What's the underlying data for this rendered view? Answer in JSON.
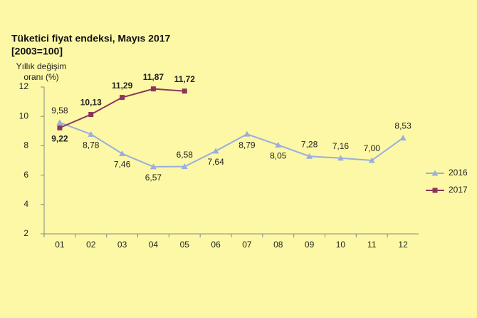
{
  "chart_data": {
    "type": "line",
    "title": "Tüketici fiyat endeksi, Mayıs 2017",
    "subtitle": "[2003=100]",
    "ylabel": "Yıllık değişim oranı (%)",
    "categories": [
      "01",
      "02",
      "03",
      "04",
      "05",
      "06",
      "07",
      "08",
      "09",
      "10",
      "11",
      "12"
    ],
    "series": [
      {
        "name": "2016",
        "color": "#9aaee0",
        "marker": "triangle",
        "values": [
          9.58,
          8.78,
          7.46,
          6.57,
          6.58,
          7.64,
          8.79,
          8.05,
          7.28,
          7.16,
          7.0,
          8.53
        ],
        "value_labels": [
          "9,58",
          "8,78",
          "7,46",
          "6,57",
          "6,58",
          "7,64",
          "8,79",
          "8,05",
          "7,28",
          "7,16",
          "7,00",
          "8,53"
        ]
      },
      {
        "name": "2017",
        "color": "#8b3558",
        "marker": "square",
        "values": [
          9.22,
          10.13,
          11.29,
          11.87,
          11.72,
          null,
          null,
          null,
          null,
          null,
          null,
          null
        ],
        "value_labels": [
          "9,22",
          "10,13",
          "11,29",
          "11,87",
          "11,72",
          null,
          null,
          null,
          null,
          null,
          null,
          null
        ]
      }
    ],
    "ylim": [
      2,
      12
    ],
    "yticks": [
      2,
      4,
      6,
      8,
      10,
      12
    ],
    "legend": "right"
  }
}
